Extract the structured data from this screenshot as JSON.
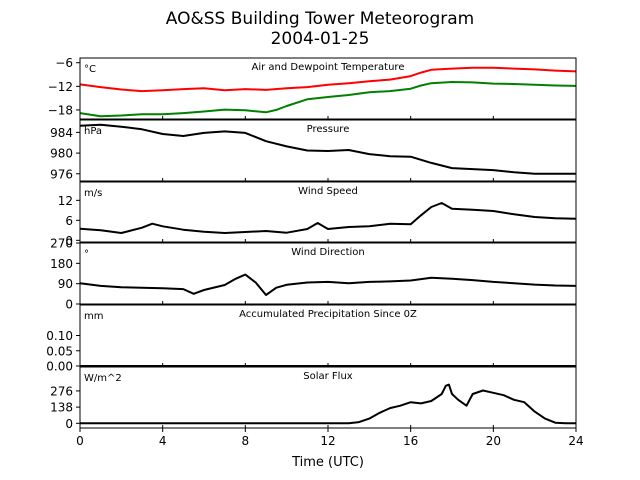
{
  "chart_data": {
    "type": "line",
    "title": "AO&SS Building Tower Meteorogram",
    "subtitle": "2004-01-25",
    "xlabel": "Time (UTC)",
    "xlim": [
      0,
      24
    ],
    "xticks": [
      "0",
      "4",
      "8",
      "12",
      "16",
      "20",
      "24"
    ],
    "panels": [
      {
        "title": "Air and Dewpoint Temperature",
        "unit": "°C",
        "ylim": [
          -20.3,
          -4.8
        ],
        "yticks": [
          "−6",
          "−12",
          "−18"
        ],
        "ytick_values": [
          -6,
          -12,
          -18
        ],
        "series": [
          {
            "color": "#ff0000",
            "x": [
              0,
              1,
              2,
              3,
              4,
              5,
              6,
              7,
              8,
              9,
              10,
              11,
              12,
              13,
              14,
              15,
              16,
              16.5,
              17,
              18,
              19,
              20,
              21,
              22,
              23,
              24
            ],
            "y": [
              -11.5,
              -12.2,
              -12.8,
              -13.2,
              -13.0,
              -12.7,
              -12.5,
              -13.0,
              -12.7,
              -12.9,
              -12.5,
              -12.2,
              -11.6,
              -11.2,
              -10.7,
              -10.3,
              -9.4,
              -8.5,
              -7.8,
              -7.5,
              -7.3,
              -7.3,
              -7.5,
              -7.7,
              -8.0,
              -8.2
            ]
          },
          {
            "color": "#008000",
            "x": [
              0,
              1,
              2,
              3,
              4,
              5,
              6,
              7,
              8,
              9,
              9.5,
              10,
              11,
              12,
              13,
              14,
              15,
              16,
              16.5,
              17,
              18,
              19,
              20,
              21,
              22,
              23,
              24
            ],
            "y": [
              -18.8,
              -19.6,
              -19.4,
              -19.1,
              -19.1,
              -18.8,
              -18.4,
              -17.9,
              -18.1,
              -18.6,
              -18.0,
              -17.0,
              -15.3,
              -14.7,
              -14.2,
              -13.5,
              -13.2,
              -12.6,
              -11.8,
              -11.2,
              -10.9,
              -11.0,
              -11.3,
              -11.4,
              -11.6,
              -11.8,
              -11.9
            ]
          }
        ]
      },
      {
        "title": "Pressure",
        "unit": "hPa",
        "ylim": [
          974.6,
          986.4
        ],
        "yticks": [
          "984",
          "980",
          "976"
        ],
        "ytick_values": [
          984,
          980,
          976
        ],
        "series": [
          {
            "color": "#000000",
            "x": [
              0,
              1,
              2,
              3,
              4,
              5,
              6,
              7,
              8,
              9,
              10,
              11,
              12,
              13,
              14,
              15,
              16,
              17,
              18,
              19,
              20,
              21,
              22,
              23,
              24
            ],
            "y": [
              985.3,
              985.5,
              985.1,
              984.6,
              983.7,
              983.3,
              983.9,
              984.2,
              983.9,
              982.3,
              981.3,
              980.5,
              980.4,
              980.6,
              979.8,
              979.4,
              979.3,
              978.1,
              977.1,
              976.9,
              976.7,
              976.3,
              976.0,
              976.0,
              976.0
            ]
          }
        ]
      },
      {
        "title": "Wind Speed",
        "unit": "m/s",
        "ylim": [
          -0.5,
          17.5
        ],
        "yticks": [
          "12",
          "6",
          "0"
        ],
        "ytick_values": [
          12,
          6,
          0
        ],
        "series": [
          {
            "color": "#000000",
            "x": [
              0,
              1,
              2,
              3,
              3.5,
              4,
              5,
              6,
              7,
              8,
              9,
              10,
              11,
              11.5,
              12,
              13,
              14,
              15,
              16,
              16.5,
              17,
              17.5,
              18,
              19,
              20,
              21,
              22,
              23,
              24
            ],
            "y": [
              3.5,
              3.0,
              2.2,
              3.8,
              5.0,
              4.2,
              3.2,
              2.6,
              2.2,
              2.5,
              2.8,
              2.3,
              3.4,
              5.2,
              3.4,
              4.0,
              4.2,
              5.0,
              4.8,
              7.5,
              10.0,
              11.2,
              9.5,
              9.2,
              8.8,
              7.8,
              7.0,
              6.6,
              6.5
            ]
          }
        ]
      },
      {
        "title": "Wind Direction",
        "unit": "°",
        "ylim": [
          0,
          270
        ],
        "yticks": [
          "270",
          "180",
          "90",
          "0"
        ],
        "ytick_values": [
          270,
          180,
          90,
          0
        ],
        "series": [
          {
            "color": "#000000",
            "x": [
              0,
              1,
              2,
              3,
              4,
              5,
              5.5,
              6,
              7,
              7.5,
              8,
              8.5,
              9,
              9.5,
              10,
              11,
              12,
              13,
              14,
              15,
              16,
              17,
              18,
              19,
              20,
              21,
              22,
              23,
              24
            ],
            "y": [
              92,
              80,
              74,
              72,
              70,
              66,
              45,
              62,
              84,
              110,
              130,
              95,
              40,
              72,
              85,
              95,
              98,
              92,
              98,
              100,
              104,
              116,
              112,
              106,
              98,
              92,
              86,
              82,
              80
            ]
          }
        ]
      },
      {
        "title": "Accumulated Precipitation Since 0Z",
        "unit": "mm",
        "ylim": [
          0,
          0.2
        ],
        "yticks": [
          "0.10",
          "0.05",
          "0.00"
        ],
        "ytick_values": [
          0.1,
          0.05,
          0.0
        ],
        "series": [
          {
            "color": "#000000",
            "x": [
              0,
              24
            ],
            "y": [
              0.0,
              0.0
            ]
          }
        ]
      },
      {
        "title": "Solar Flux",
        "unit": "W/m^2",
        "ylim": [
          -40,
          480
        ],
        "yticks": [
          "276",
          "138",
          "0"
        ],
        "ytick_values": [
          276,
          138,
          0
        ],
        "series": [
          {
            "color": "#000000",
            "x": [
              0,
              13,
              13.5,
              14,
              14.5,
              15,
              15.5,
              16,
              16.5,
              17,
              17.5,
              17.7,
              17.85,
              18.0,
              18.3,
              18.7,
              19.0,
              19.5,
              20.0,
              20.5,
              21.0,
              21.5,
              22.0,
              22.5,
              23.0,
              23.5,
              24
            ],
            "y": [
              0,
              0,
              10,
              40,
              90,
              130,
              150,
              180,
              170,
              190,
              250,
              320,
              330,
              250,
              200,
              150,
              250,
              280,
              260,
              240,
              200,
              180,
              100,
              40,
              5,
              0,
              0
            ]
          }
        ]
      }
    ]
  }
}
